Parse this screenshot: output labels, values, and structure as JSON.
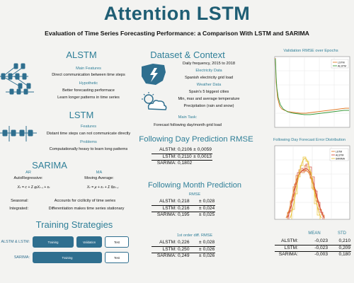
{
  "title": "Attention LSTM",
  "subtitle": "Evaluation of Time Series Forecasting Performance: a Comparison With LSTM and SARIMA",
  "alstm": {
    "heading": "ALSTM",
    "main_features_label": "Main Features",
    "main_features_text": "Direct communication between time steps",
    "hypothetic_label": "Hypothetic",
    "hypothetic_lines": [
      "Better forecasting performace",
      "Learn longer patterns in time series"
    ]
  },
  "lstm": {
    "heading": "LSTM",
    "features_label": "Features",
    "features_text": "Distant time steps can not communicate directly",
    "problems_label": "Problems",
    "problems_text": "Computationally heavy to learn long patterns"
  },
  "sarima": {
    "heading": "SARIMA",
    "ar_label": "AR",
    "ar_text": "AutoRegressive:",
    "ma_label": "MA",
    "ma_text": "Moving Average:",
    "ar_formula": "Xₜ = c + Σ φᵢXₜ₋ᵢ + εₜ",
    "ma_formula": "Xₜ = μ + εₜ + Σ θᵢεₜ₋ᵢ",
    "seasonal_label": "Seasonal:",
    "seasonal_text": "Accounts for cicilicity of time series",
    "integrated_label": "Integrated:",
    "integrated_text": "Differentiation makes time series stationary"
  },
  "training": {
    "heading": "Training Strategies",
    "row1_label": "ALSTM & LSTM:",
    "row2_label": "SARIMA:",
    "row1_buttons": [
      "Training",
      "Validation",
      "Test"
    ],
    "row2_buttons": [
      "Training",
      "Test"
    ]
  },
  "dataset": {
    "heading": "Dataset & Context",
    "line1": "Daily frequency, 2015 to 2018",
    "electricity_label": "Electricity Data",
    "electricity_text": "Spanish electricity grid load",
    "weather_label": "Weather Data",
    "weather_lines": [
      "Spain's 5 biggest cities",
      "Min, max and average temperature",
      "Precipitation (rain and snow)"
    ],
    "task_label": "Main Task:",
    "task_text": "Forecast following day/month grid load"
  },
  "day_rmse": {
    "heading": "Following Day Prediction RMSE",
    "rows": [
      {
        "model": "ALSTM:",
        "value": "0,2106",
        "pm": "±",
        "err": "0,0059"
      },
      {
        "model": "LSTM:",
        "value": "0,2110",
        "pm": "±",
        "err": "0,0013"
      },
      {
        "model": "SARIMA:",
        "value": "0,1802",
        "pm": "",
        "err": ""
      }
    ]
  },
  "month_pred": {
    "heading": "Following Month Prediction",
    "rmse_label": "RMSE",
    "rmse_rows": [
      {
        "model": "ALSTM:",
        "value": "0,218",
        "pm": "±",
        "err": "0,028"
      },
      {
        "model": "LSTM:",
        "value": "0,216",
        "pm": "±",
        "err": "0,024"
      },
      {
        "model": "SARIMA:",
        "value": "0,195",
        "pm": "±",
        "err": "0,025"
      }
    ],
    "diff_label": "1st order diff. RMSE",
    "diff_rows": [
      {
        "model": "ALSTM:",
        "value": "0,226",
        "pm": "±",
        "err": "0,028"
      },
      {
        "model": "LSTM:",
        "value": "0,250",
        "pm": "±",
        "err": "0,026"
      },
      {
        "model": "SARIMA:",
        "value": "0,249",
        "pm": "±",
        "err": "0,026"
      }
    ]
  },
  "error_stats": {
    "col_mean": "MEAN",
    "col_std": "STD",
    "rows": [
      {
        "model": "ALSTM:",
        "mean": "-0,023",
        "std": "0,210"
      },
      {
        "model": "LSTM:",
        "mean": "-0,023",
        "std": "0,209"
      },
      {
        "model": "SARIMA:",
        "mean": "-0,003",
        "std": "0,180"
      }
    ]
  },
  "chart_data": [
    {
      "type": "line",
      "title": "Validation RMSE over Epochs",
      "legend": [
        "LSTM",
        "ALSTM"
      ],
      "legend_position": "top-right",
      "colors": {
        "LSTM": "#e07b2a",
        "ALSTM": "#3a9a3a"
      },
      "grid": true
    },
    {
      "type": "line",
      "title": "Following Day Forecast Error Distribution",
      "legend": [
        "LSTM",
        "ALSTM",
        "SARIMA"
      ],
      "legend_position": "top-right",
      "colors": {
        "LSTM": "#e07b2a",
        "ALSTM": "#d44b3a",
        "SARIMA": "#e8c23a"
      },
      "grid": true
    }
  ]
}
